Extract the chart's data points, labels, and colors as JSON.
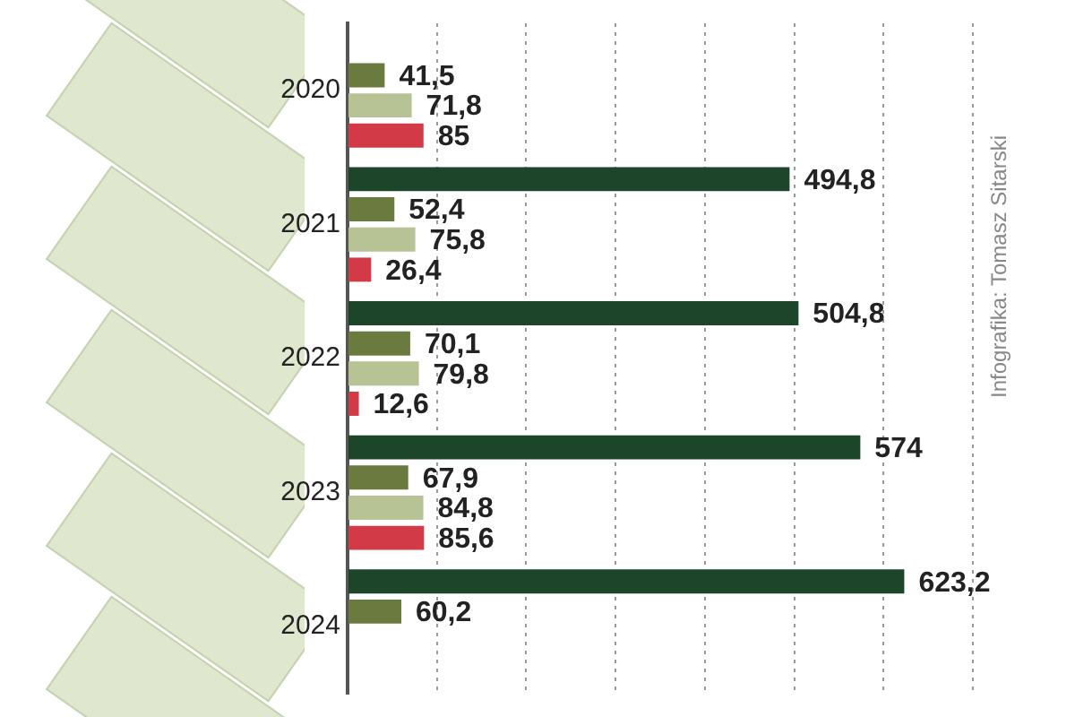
{
  "chart_data": {
    "type": "bar",
    "orientation": "horizontal",
    "categories": [
      "2020",
      "2021",
      "2022",
      "2023",
      "2024"
    ],
    "series": [
      {
        "color": "#1d4529",
        "values": [
          null,
          494.8,
          504.8,
          574,
          623.2
        ],
        "value_labels": [
          null,
          "494,8",
          "504,8",
          "574",
          "623,2"
        ]
      },
      {
        "color": "#6b7a3f",
        "values": [
          41.5,
          52.4,
          70.1,
          67.9,
          60.2
        ],
        "value_labels": [
          "41,5",
          "52,4",
          "70,1",
          "67,9",
          "60,2"
        ]
      },
      {
        "color": "#b7c295",
        "values": [
          71.8,
          75.8,
          79.8,
          84.8,
          null
        ],
        "value_labels": [
          "71,8",
          "75,8",
          "79,8",
          "84,8",
          null
        ]
      },
      {
        "color": "#d33a47",
        "values": [
          85,
          26.4,
          12.6,
          85.6,
          null
        ],
        "value_labels": [
          "85",
          "26,4",
          "12,6",
          "85,6",
          null
        ]
      }
    ],
    "xlim": [
      0,
      700
    ],
    "xticks": [
      {
        "value": 0,
        "label": null
      },
      {
        "value": 100,
        "label": null
      },
      {
        "value": 200,
        "label": null
      },
      {
        "value": 300,
        "label": null
      },
      {
        "value": 400,
        "label": null
      },
      {
        "value": 500,
        "label": null
      },
      {
        "value": 600,
        "label": null
      },
      {
        "value": 700,
        "label": null
      }
    ],
    "tick_labels": "y",
    "grid": "x",
    "legend": false,
    "annotations": [
      "Infografika: Tomasz Sitarski"
    ]
  }
}
